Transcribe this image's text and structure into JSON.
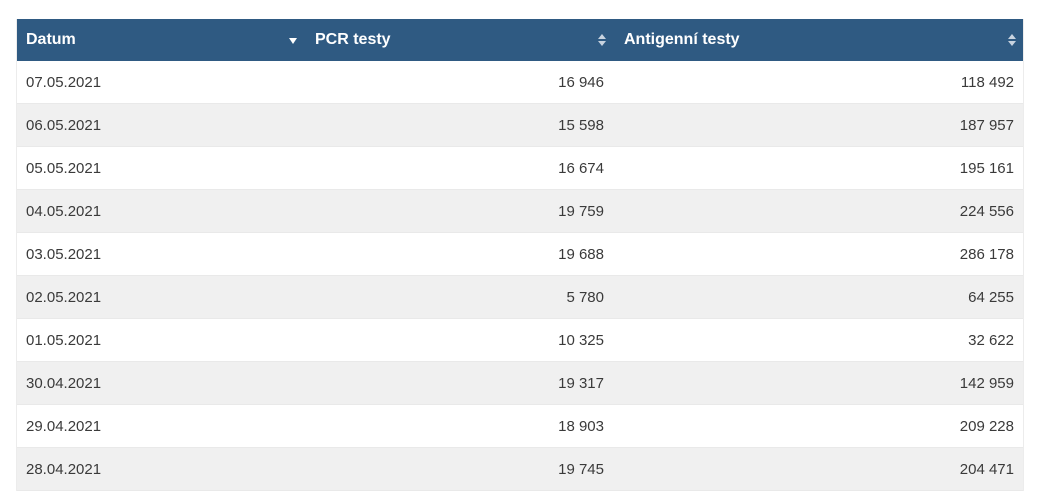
{
  "table": {
    "headers": {
      "date": "Datum",
      "pcr": "PCR testy",
      "antigen": "Antigenní testy"
    },
    "rows": [
      {
        "date": "07.05.2021",
        "pcr": "16 946",
        "antigen": "118 492"
      },
      {
        "date": "06.05.2021",
        "pcr": "15 598",
        "antigen": "187 957"
      },
      {
        "date": "05.05.2021",
        "pcr": "16 674",
        "antigen": "195 161"
      },
      {
        "date": "04.05.2021",
        "pcr": "19 759",
        "antigen": "224 556"
      },
      {
        "date": "03.05.2021",
        "pcr": "19 688",
        "antigen": "286 178"
      },
      {
        "date": "02.05.2021",
        "pcr": "5 780",
        "antigen": "64 255"
      },
      {
        "date": "01.05.2021",
        "pcr": "10 325",
        "antigen": "32 622"
      },
      {
        "date": "30.04.2021",
        "pcr": "19 317",
        "antigen": "142 959"
      },
      {
        "date": "29.04.2021",
        "pcr": "18 903",
        "antigen": "209 228"
      },
      {
        "date": "28.04.2021",
        "pcr": "19 745",
        "antigen": "204 471"
      }
    ],
    "sort": {
      "date": "sort-descending-icon",
      "pcr": "sort-both-icon",
      "antigen": "sort-both-icon"
    }
  },
  "colors": {
    "header_bg": "#2f5a82",
    "header_text": "#ffffff",
    "row_alt": "#f0f0f0",
    "text": "#3a3a3a"
  }
}
